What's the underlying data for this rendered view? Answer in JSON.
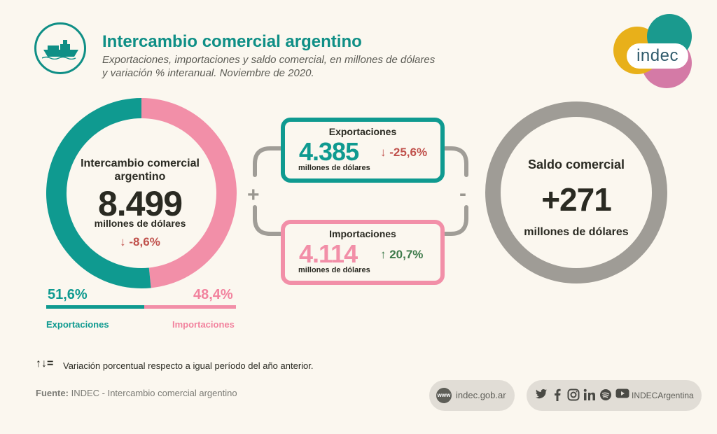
{
  "header": {
    "title": "Intercambio comercial argentino",
    "subtitle_line1": "Exportaciones, importaciones y saldo comercial, en millones de dólares",
    "subtitle_line2": "y variación % interanual. Noviembre de 2020."
  },
  "logo": {
    "text": "indec",
    "colors": [
      "#e8b01a",
      "#1a9a8e",
      "#d47aa6"
    ]
  },
  "intercambio": {
    "label": "Intercambio comercial argentino",
    "value": "8.499",
    "unit": "millones de dólares",
    "variation": "↓ -8,6%",
    "share_exportaciones": 51.6,
    "share_importaciones": 48.4,
    "pct_exp_text": "51,6%",
    "pct_imp_text": "48,4%",
    "label_exp": "Exportaciones",
    "label_imp": "Importaciones"
  },
  "exportaciones": {
    "title": "Exportaciones",
    "value": "4.385",
    "unit": "millones de dólares",
    "variation": "↓ -25,6%"
  },
  "importaciones": {
    "title": "Importaciones",
    "value": "4.114",
    "unit": "millones de dólares",
    "variation": "↑ 20,7%"
  },
  "operators": {
    "plus": "+",
    "minus": "-"
  },
  "saldo": {
    "label": "Saldo comercial",
    "value": "+271",
    "unit": "millones de dólares"
  },
  "note": {
    "icon": "↑↓=",
    "text": "Variación porcentual respecto a igual período del año anterior."
  },
  "source": {
    "label": "Fuente:",
    "text": "INDEC - Intercambio comercial argentino"
  },
  "footer": {
    "web_badge": "www",
    "web": "indec.gob.ar",
    "social_handle": "INDECArgentina",
    "social_icons": [
      "twitter-icon",
      "facebook-icon",
      "instagram-icon",
      "linkedin-icon",
      "spotify-icon",
      "youtube-icon"
    ]
  },
  "colors": {
    "teal": "#0f9a90",
    "pink": "#f28fa8",
    "gray": "#9f9c96",
    "down": "#c0514c",
    "up": "#3d7a4a"
  }
}
